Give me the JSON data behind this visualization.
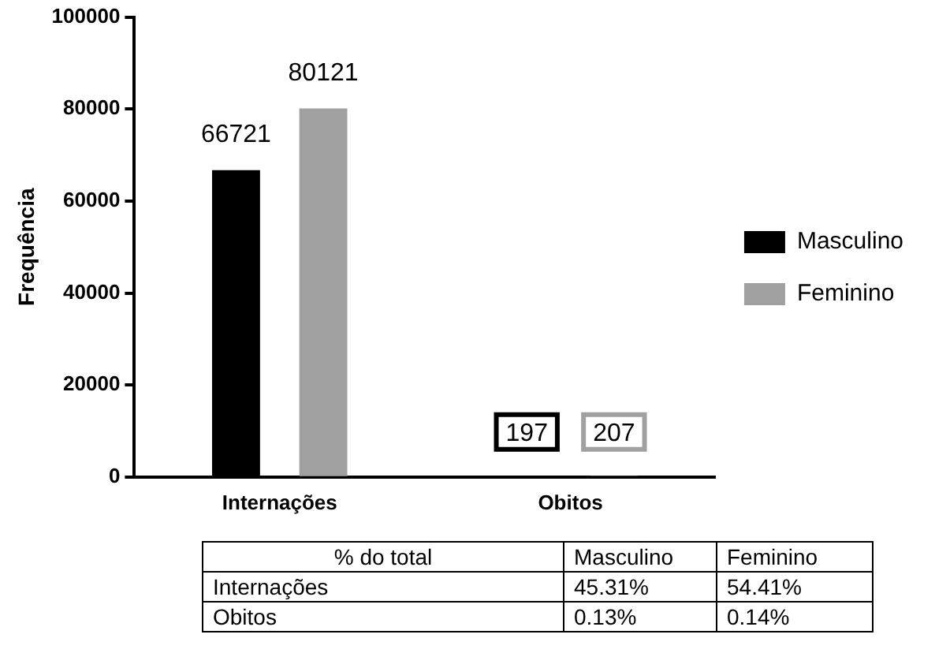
{
  "chart_data": {
    "type": "bar",
    "ylabel": "Frequência",
    "categories": [
      "Internações",
      "Obitos"
    ],
    "series": [
      {
        "name": "Masculino",
        "color": "#000000",
        "values": [
          66721,
          197
        ]
      },
      {
        "name": "Feminino",
        "color": "#a0a0a0",
        "values": [
          80121,
          207
        ]
      }
    ],
    "ylim": [
      0,
      100000
    ],
    "yticks": [
      0,
      20000,
      40000,
      60000,
      80000,
      100000
    ],
    "grid": false,
    "legend": "right",
    "data_labels": true,
    "annotations": [
      "% do total",
      "Masculino",
      "Feminino",
      "Internações",
      "45.31%",
      "54.41%",
      "Obitos",
      "0.13%",
      "0.14%"
    ]
  }
}
